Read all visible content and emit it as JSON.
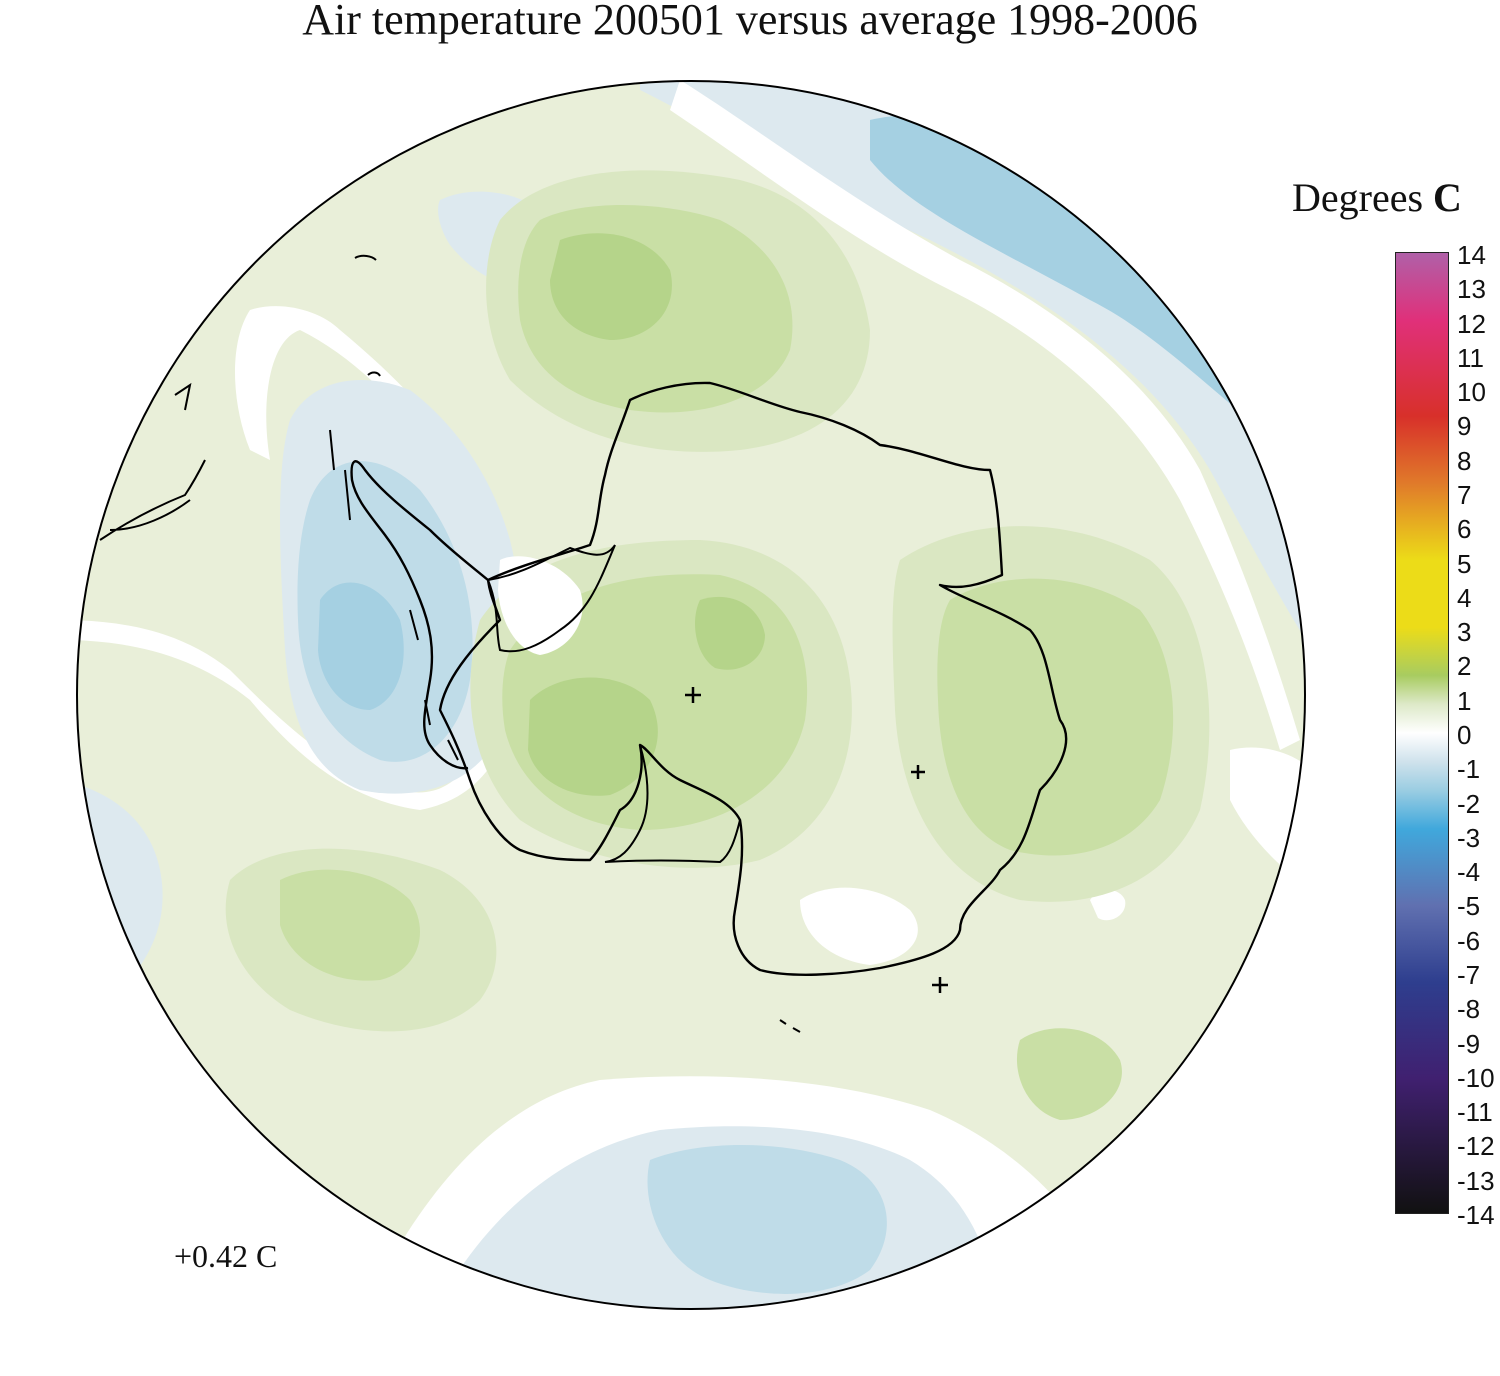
{
  "title": "Air temperature 200501 versus average 1998-2006",
  "legend": {
    "title_regular": "Degrees",
    "title_bold": "C",
    "ticks": [
      14,
      13,
      12,
      11,
      10,
      9,
      8,
      7,
      6,
      5,
      4,
      3,
      2,
      1,
      0,
      -1,
      -2,
      -3,
      -4,
      -5,
      -6,
      -7,
      -8,
      -9,
      -10,
      -11,
      -12,
      -13,
      -14
    ],
    "colors": {
      "top": "#b060a8",
      "magenta": "#e0307a",
      "red": "#d8302a",
      "orange": "#e07a2a",
      "yellow": "#ecdc18",
      "light_green": "#a8cc60",
      "pale_green": "#dde9c8",
      "white": "#ffffff",
      "pale_blue": "#cfe2ec",
      "light_blue": "#9acde2",
      "blue": "#40a8dc",
      "slate_blue": "#6070b0",
      "navy": "#2e3e8e",
      "purple": "#402070",
      "black": "#111111"
    }
  },
  "mean_anomaly_label": "+0.42 C",
  "map": {
    "projection": "south-polar-stereographic",
    "region": "Antarctica",
    "field_colors": {
      "ocean_pale_green": "#e9efd9",
      "green_1": "#dae7c2",
      "green_2": "#c9dfa5",
      "green_3": "#b5d48a",
      "neutral_white": "#ffffff",
      "blue_1": "#dde9ef",
      "blue_2": "#bfdce8",
      "blue_3": "#a5d0e2"
    },
    "coastline_color": "#000000"
  }
}
